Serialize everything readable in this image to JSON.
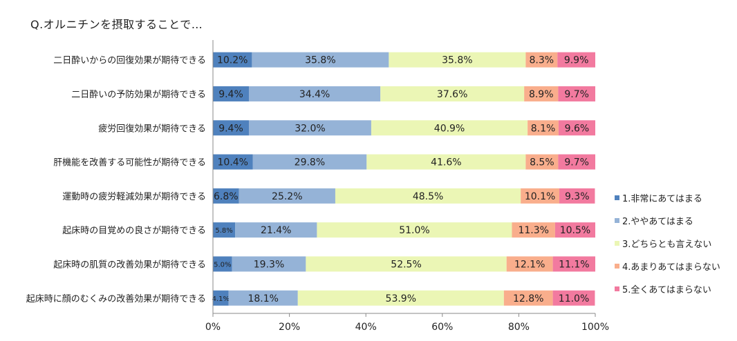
{
  "title": "Q.オルニチンを摂取することで…",
  "chart_data": {
    "type": "bar",
    "orientation": "horizontal",
    "stacked": "percent",
    "categories": [
      "二日酔いからの回復効果が期待できる",
      "二日酔いの予防効果が期待できる",
      "疲労回復効果が期待できる",
      "肝機能を改善する可能性が期待できる",
      "運動時の疲労軽減効果が期待できる",
      "起床時の目覚めの良さが期待できる",
      "起床時の肌質の改善効果が期待できる",
      "起床時に顔のむくみの改善効果が期待できる"
    ],
    "series": [
      {
        "name": "1.非常にあてはまる",
        "color": "#4f81bd",
        "values": [
          10.2,
          9.4,
          9.4,
          10.4,
          6.8,
          5.8,
          5.0,
          4.1
        ],
        "labels": [
          "10.2%",
          "9.4%",
          "9.4%",
          "10.4%",
          "6.8%",
          "5.8%",
          "5.0%",
          "4.1%"
        ]
      },
      {
        "name": "2.ややあてはまる",
        "color": "#95b3d7",
        "values": [
          35.8,
          34.4,
          32.0,
          29.8,
          25.2,
          21.4,
          19.3,
          18.1
        ],
        "labels": [
          "35.8%",
          "34.4%",
          "32.0%",
          "29.8%",
          "25.2%",
          "21.4%",
          "19.3%",
          "18.1%"
        ]
      },
      {
        "name": "3.どちらとも言えない",
        "color": "#ebf6b5",
        "values": [
          35.8,
          37.6,
          40.9,
          41.6,
          48.5,
          51.0,
          52.5,
          53.9
        ],
        "labels": [
          "35.8%",
          "37.6%",
          "40.9%",
          "41.6%",
          "48.5%",
          "51.0%",
          "52.5%",
          "53.9%"
        ]
      },
      {
        "name": "4.あまりあてはまらない",
        "color": "#f9ae8c",
        "values": [
          8.3,
          8.9,
          8.1,
          8.5,
          10.1,
          11.3,
          12.1,
          12.8
        ],
        "labels": [
          "8.3%",
          "8.9%",
          "8.1%",
          "8.5%",
          "10.1%",
          "11.3%",
          "12.1%",
          "12.8%"
        ]
      },
      {
        "name": "5.全くあてはまらない",
        "color": "#f27a9f",
        "values": [
          9.9,
          9.7,
          9.6,
          9.7,
          9.3,
          10.5,
          11.1,
          11.0
        ],
        "labels": [
          "9.9%",
          "9.7%",
          "9.6%",
          "9.7%",
          "9.3%",
          "10.5%",
          "11.1%",
          "11.0%"
        ]
      }
    ],
    "xlim": [
      0,
      100
    ],
    "x_ticks": [
      "0%",
      "20%",
      "40%",
      "60%",
      "80%",
      "100%"
    ],
    "legend_position": "right",
    "grid": false
  }
}
